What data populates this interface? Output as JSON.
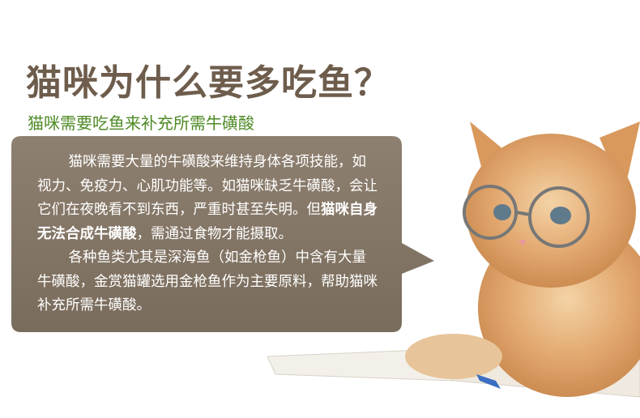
{
  "header": {
    "title": "猫咪为什么要多吃鱼？",
    "subtitle": "猫咪需要吃鱼来补充所需牛磺酸"
  },
  "bubble": {
    "paragraphs": [
      [
        "猫咪需要大量的牛磺酸来维持身体各项技能，如视力、免疫力、心肌功能等。如猫咪缺乏牛磺酸，会让它们在夜晚看不到东西，严重时甚至失明。但",
        "猫咪自身无法合成牛磺酸",
        "，需通过食物才能摄取。"
      ],
      [
        "各种鱼类尤其是深海鱼（如金枪鱼）中含有大量牛磺酸，金赏猫罐选用金枪鱼作为主要原料，帮助猫咪补充所需牛磺酸。"
      ]
    ]
  }
}
